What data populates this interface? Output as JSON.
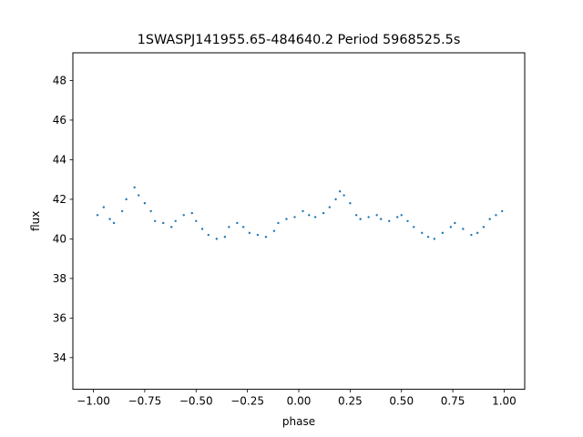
{
  "chart_data": {
    "type": "scatter",
    "title": "1SWASPJ141955.65-484640.2 Period 5968525.5s",
    "xlabel": "phase",
    "ylabel": "flux",
    "xlim": [
      -1.1,
      1.1
    ],
    "ylim": [
      32.4,
      49.4
    ],
    "xticks": [
      -1.0,
      -0.75,
      -0.5,
      -0.25,
      0.0,
      0.25,
      0.5,
      0.75,
      1.0
    ],
    "xtick_labels": [
      "−1.00",
      "−0.75",
      "−0.50",
      "−0.25",
      "0.00",
      "0.25",
      "0.50",
      "0.75",
      "1.00"
    ],
    "yticks": [
      34,
      36,
      38,
      40,
      42,
      44,
      46,
      48
    ],
    "ytick_labels": [
      "34",
      "36",
      "38",
      "40",
      "42",
      "44",
      "46",
      "48"
    ],
    "grid": false,
    "marker_color": "#1f77b4",
    "marker": "small dots",
    "series": [
      {
        "x": [
          -0.98,
          -0.95,
          -0.92,
          -0.9,
          -0.86,
          -0.84,
          -0.8,
          -0.78,
          -0.75,
          -0.72,
          -0.7,
          -0.66,
          -0.62,
          -0.6,
          -0.56,
          -0.52,
          -0.5,
          -0.47,
          -0.44,
          -0.4,
          -0.36,
          -0.34,
          -0.3,
          -0.27,
          -0.24,
          -0.2,
          -0.16,
          -0.12,
          -0.1,
          -0.06,
          -0.02,
          0.02,
          0.05,
          0.08,
          0.12,
          0.15,
          0.18,
          0.2,
          0.22,
          0.25,
          0.28,
          0.3,
          0.34,
          0.38,
          0.4,
          0.44,
          0.48,
          0.5,
          0.53,
          0.56,
          0.6,
          0.63,
          0.66,
          0.7,
          0.74,
          0.76,
          0.8,
          0.84,
          0.87,
          0.9,
          0.93,
          0.96,
          0.99
        ],
        "y": [
          41.2,
          41.6,
          41.0,
          40.8,
          41.4,
          42.0,
          42.6,
          42.2,
          41.8,
          41.4,
          40.9,
          40.8,
          40.6,
          40.9,
          41.2,
          41.3,
          40.9,
          40.5,
          40.2,
          40.0,
          40.1,
          40.6,
          40.8,
          40.6,
          40.3,
          40.2,
          40.1,
          40.4,
          40.8,
          41.0,
          41.1,
          41.4,
          41.2,
          41.1,
          41.3,
          41.6,
          42.0,
          42.4,
          42.2,
          41.8,
          41.2,
          41.0,
          41.1,
          41.2,
          41.0,
          40.9,
          41.1,
          41.2,
          40.9,
          40.6,
          40.3,
          40.1,
          40.0,
          40.3,
          40.6,
          40.8,
          40.5,
          40.2,
          40.3,
          40.6,
          41.0,
          41.2,
          41.4
        ]
      }
    ]
  }
}
